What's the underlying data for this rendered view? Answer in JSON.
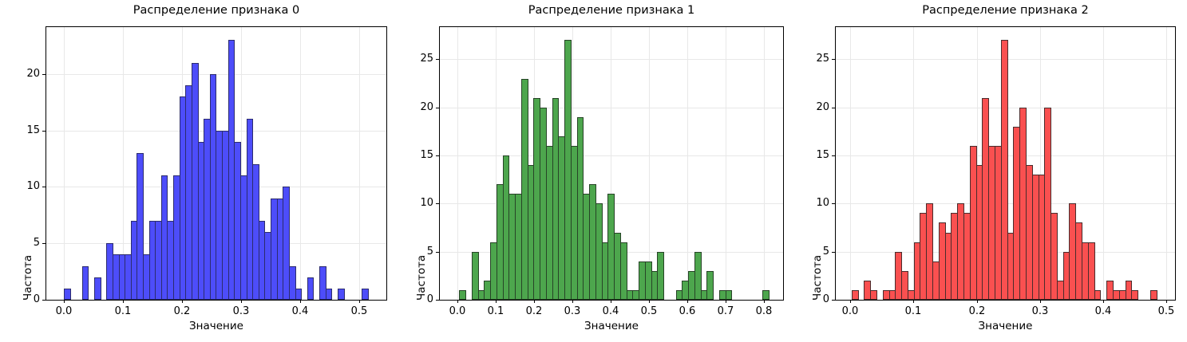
{
  "labels": {
    "xlabel": "Значение",
    "ylabel": "Частота"
  },
  "chart_data": [
    {
      "type": "bar",
      "subtype": "histogram",
      "title": "Распределение признака 0",
      "xlabel": "Значение",
      "ylabel": "Частота",
      "bar_color": "#4d4dfa",
      "edge_color": "#2c2c6e",
      "bin_start": 0.0,
      "bin_width": 0.0103,
      "counts": [
        1,
        0,
        0,
        3,
        0,
        2,
        0,
        5,
        4,
        4,
        4,
        7,
        13,
        4,
        7,
        7,
        11,
        7,
        11,
        18,
        19,
        21,
        14,
        16,
        20,
        15,
        15,
        23,
        14,
        11,
        16,
        12,
        7,
        6,
        9,
        9,
        10,
        3,
        1,
        0,
        2,
        0,
        3,
        1,
        0,
        1,
        0,
        0,
        0,
        1
      ],
      "xlim": [
        -0.0296,
        0.546
      ],
      "ylim": [
        0,
        24.15
      ],
      "xticks": [
        0.0,
        0.1,
        0.2,
        0.3,
        0.4,
        0.5
      ],
      "yticks": [
        0,
        5,
        10,
        15,
        20
      ],
      "grid": true
    },
    {
      "type": "bar",
      "subtype": "histogram",
      "title": "Распределение признака 1",
      "xlabel": "Значение",
      "ylabel": "Частота",
      "bar_color": "#4da64d",
      "edge_color": "#274427",
      "bin_start": 0.004,
      "bin_width": 0.01616,
      "counts": [
        1,
        0,
        5,
        1,
        2,
        6,
        12,
        15,
        11,
        11,
        23,
        14,
        21,
        20,
        16,
        21,
        17,
        27,
        16,
        19,
        11,
        12,
        10,
        6,
        11,
        7,
        6,
        1,
        1,
        4,
        4,
        3,
        5,
        0,
        0,
        1,
        2,
        3,
        5,
        1,
        3,
        0,
        1,
        1,
        0,
        0,
        0,
        0,
        0,
        1
      ],
      "xlim": [
        -0.0467,
        0.85
      ],
      "ylim": [
        0,
        28.35
      ],
      "xticks": [
        0.0,
        0.1,
        0.2,
        0.3,
        0.4,
        0.5,
        0.6,
        0.7,
        0.8
      ],
      "yticks": [
        0,
        5,
        10,
        15,
        20,
        25
      ],
      "grid": true
    },
    {
      "type": "bar",
      "subtype": "histogram",
      "title": "Распределение признака 2",
      "xlabel": "Значение",
      "ylabel": "Частота",
      "bar_color": "#fa5050",
      "edge_color": "#4a2c2c",
      "bin_start": 0.002,
      "bin_width": 0.00984,
      "counts": [
        1,
        0,
        2,
        1,
        0,
        1,
        1,
        5,
        3,
        1,
        6,
        9,
        10,
        4,
        8,
        7,
        9,
        10,
        9,
        16,
        14,
        21,
        16,
        16,
        27,
        7,
        18,
        20,
        14,
        13,
        13,
        20,
        9,
        2,
        5,
        10,
        8,
        6,
        6,
        1,
        0,
        2,
        1,
        1,
        2,
        1,
        0,
        0,
        1,
        0
      ],
      "xlim": [
        -0.023,
        0.5138
      ],
      "ylim": [
        0,
        28.35
      ],
      "xticks": [
        0.0,
        0.1,
        0.2,
        0.3,
        0.4,
        0.5
      ],
      "yticks": [
        0,
        5,
        10,
        15,
        20,
        25
      ],
      "grid": true
    }
  ]
}
